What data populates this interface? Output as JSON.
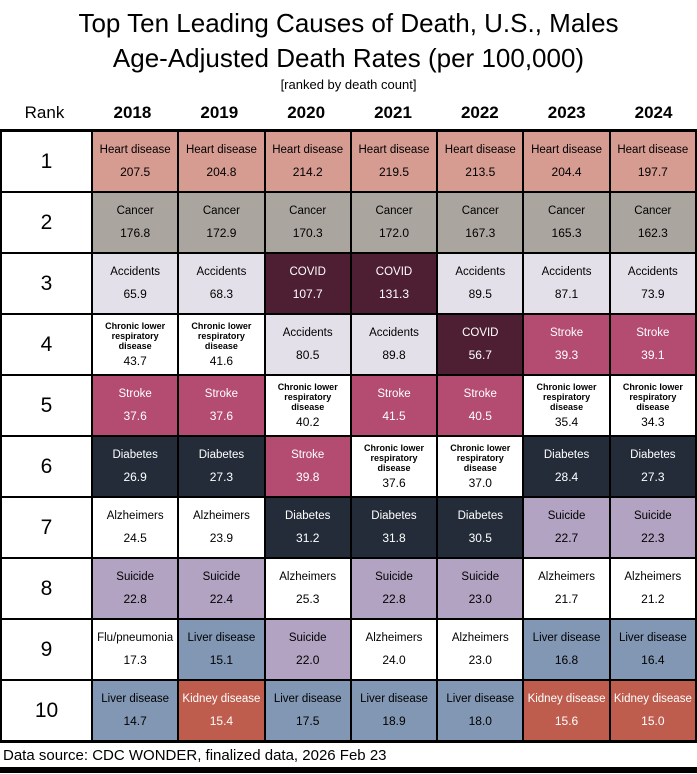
{
  "chart_data": {
    "type": "table",
    "title": "Top Ten Leading Causes of Death, U.S., Males",
    "subtitle": "Age-Adjusted Death Rates (per 100,000)",
    "note": "[ranked by death count]",
    "rank_header": "Rank",
    "year_columns": [
      "2018",
      "2019",
      "2020",
      "2021",
      "2022",
      "2023",
      "2024"
    ],
    "rows": [
      {
        "rank": "1",
        "cells": [
          {
            "cause": "Heart disease",
            "rate": "207.5"
          },
          {
            "cause": "Heart disease",
            "rate": "204.8"
          },
          {
            "cause": "Heart disease",
            "rate": "214.2"
          },
          {
            "cause": "Heart disease",
            "rate": "219.5"
          },
          {
            "cause": "Heart disease",
            "rate": "213.5"
          },
          {
            "cause": "Heart disease",
            "rate": "204.4"
          },
          {
            "cause": "Heart disease",
            "rate": "197.7"
          }
        ]
      },
      {
        "rank": "2",
        "cells": [
          {
            "cause": "Cancer",
            "rate": "176.8"
          },
          {
            "cause": "Cancer",
            "rate": "172.9"
          },
          {
            "cause": "Cancer",
            "rate": "170.3"
          },
          {
            "cause": "Cancer",
            "rate": "172.0"
          },
          {
            "cause": "Cancer",
            "rate": "167.3"
          },
          {
            "cause": "Cancer",
            "rate": "165.3"
          },
          {
            "cause": "Cancer",
            "rate": "162.3"
          }
        ]
      },
      {
        "rank": "3",
        "cells": [
          {
            "cause": "Accidents",
            "rate": "65.9"
          },
          {
            "cause": "Accidents",
            "rate": "68.3"
          },
          {
            "cause": "COVID",
            "rate": "107.7"
          },
          {
            "cause": "COVID",
            "rate": "131.3"
          },
          {
            "cause": "Accidents",
            "rate": "89.5"
          },
          {
            "cause": "Accidents",
            "rate": "87.1"
          },
          {
            "cause": "Accidents",
            "rate": "73.9"
          }
        ]
      },
      {
        "rank": "4",
        "cells": [
          {
            "cause": "Chronic lower respiratory disease",
            "rate": "43.7"
          },
          {
            "cause": "Chronic lower respiratory disease",
            "rate": "41.6"
          },
          {
            "cause": "Accidents",
            "rate": "80.5"
          },
          {
            "cause": "Accidents",
            "rate": "89.8"
          },
          {
            "cause": "COVID",
            "rate": "56.7"
          },
          {
            "cause": "Stroke",
            "rate": "39.3"
          },
          {
            "cause": "Stroke",
            "rate": "39.1"
          }
        ]
      },
      {
        "rank": "5",
        "cells": [
          {
            "cause": "Stroke",
            "rate": "37.6"
          },
          {
            "cause": "Stroke",
            "rate": "37.6"
          },
          {
            "cause": "Chronic lower respiratory disease",
            "rate": "40.2"
          },
          {
            "cause": "Stroke",
            "rate": "41.5"
          },
          {
            "cause": "Stroke",
            "rate": "40.5"
          },
          {
            "cause": "Chronic lower respiratory disease",
            "rate": "35.4"
          },
          {
            "cause": "Chronic lower respiratory disease",
            "rate": "34.3"
          }
        ]
      },
      {
        "rank": "6",
        "cells": [
          {
            "cause": "Diabetes",
            "rate": "26.9"
          },
          {
            "cause": "Diabetes",
            "rate": "27.3"
          },
          {
            "cause": "Stroke",
            "rate": "39.8"
          },
          {
            "cause": "Chronic lower respiratory disease",
            "rate": "37.6"
          },
          {
            "cause": "Chronic lower respiratory disease",
            "rate": "37.0"
          },
          {
            "cause": "Diabetes",
            "rate": "28.4"
          },
          {
            "cause": "Diabetes",
            "rate": "27.3"
          }
        ]
      },
      {
        "rank": "7",
        "cells": [
          {
            "cause": "Alzheimers",
            "rate": "24.5"
          },
          {
            "cause": "Alzheimers",
            "rate": "23.9"
          },
          {
            "cause": "Diabetes",
            "rate": "31.2"
          },
          {
            "cause": "Diabetes",
            "rate": "31.8"
          },
          {
            "cause": "Diabetes",
            "rate": "30.5"
          },
          {
            "cause": "Suicide",
            "rate": "22.7"
          },
          {
            "cause": "Suicide",
            "rate": "22.3"
          }
        ]
      },
      {
        "rank": "8",
        "cells": [
          {
            "cause": "Suicide",
            "rate": "22.8"
          },
          {
            "cause": "Suicide",
            "rate": "22.4"
          },
          {
            "cause": "Alzheimers",
            "rate": "25.3"
          },
          {
            "cause": "Suicide",
            "rate": "22.8"
          },
          {
            "cause": "Suicide",
            "rate": "23.0"
          },
          {
            "cause": "Alzheimers",
            "rate": "21.7"
          },
          {
            "cause": "Alzheimers",
            "rate": "21.2"
          }
        ]
      },
      {
        "rank": "9",
        "cells": [
          {
            "cause": "Flu/pneumonia",
            "rate": "17.3"
          },
          {
            "cause": "Liver disease",
            "rate": "15.1"
          },
          {
            "cause": "Suicide",
            "rate": "22.0"
          },
          {
            "cause": "Alzheimers",
            "rate": "24.0"
          },
          {
            "cause": "Alzheimers",
            "rate": "23.0"
          },
          {
            "cause": "Liver disease",
            "rate": "16.8"
          },
          {
            "cause": "Liver disease",
            "rate": "16.4"
          }
        ]
      },
      {
        "rank": "10",
        "cells": [
          {
            "cause": "Liver disease",
            "rate": "14.7"
          },
          {
            "cause": "Kidney disease",
            "rate": "15.4"
          },
          {
            "cause": "Liver disease",
            "rate": "17.5"
          },
          {
            "cause": "Liver disease",
            "rate": "18.9"
          },
          {
            "cause": "Liver disease",
            "rate": "18.0"
          },
          {
            "cause": "Kidney disease",
            "rate": "15.6"
          },
          {
            "cause": "Kidney disease",
            "rate": "15.0"
          }
        ]
      }
    ],
    "cause_styles": {
      "Heart disease": {
        "bg": "#D69B91",
        "fg": "#000000"
      },
      "Cancer": {
        "bg": "#ABA5A0",
        "fg": "#000000"
      },
      "Accidents": {
        "bg": "#E4E0E9",
        "fg": "#000000"
      },
      "COVID": {
        "bg": "#4E1F33",
        "fg": "#FFFFFF"
      },
      "Chronic lower respiratory disease": {
        "bg": "#FFFFFF",
        "fg": "#000000"
      },
      "Stroke": {
        "bg": "#B44B71",
        "fg": "#FFFFFF"
      },
      "Diabetes": {
        "bg": "#242C3A",
        "fg": "#FFFFFF"
      },
      "Alzheimers": {
        "bg": "#FFFFFF",
        "fg": "#000000"
      },
      "Suicide": {
        "bg": "#B1A3C1",
        "fg": "#000000"
      },
      "Flu/pneumonia": {
        "bg": "#FFFFFF",
        "fg": "#000000"
      },
      "Liver disease": {
        "bg": "#8297B3",
        "fg": "#000000"
      },
      "Kidney disease": {
        "bg": "#BE5C4D",
        "fg": "#FFFFFF"
      }
    },
    "grid_line_color": "#000000"
  },
  "footer": {
    "text": "Data source: CDC WONDER, finalized data, 2026 Feb 23"
  }
}
